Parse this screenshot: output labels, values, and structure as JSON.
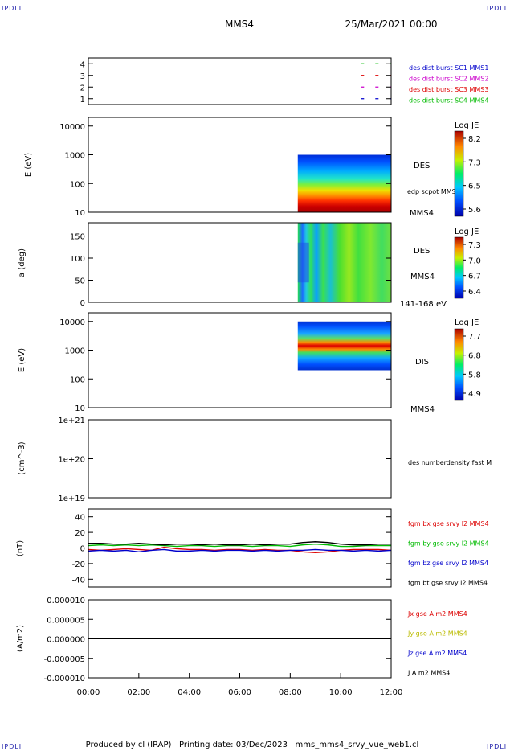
{
  "header": {
    "corner_label": "IPDLI",
    "spacecraft": "MMS4",
    "datetime": "25/Mar/2021 00:00"
  },
  "footer": {
    "text": "Produced by cl (IRAP)   Printing date: 03/Dec/2023   mms_mms4_srvy_vue_web1.cl"
  },
  "colors": {
    "frame": "#000000",
    "mms1": "#0000cc",
    "mms2": "#cc00cc",
    "mms3": "#dd0000",
    "mms4": "#00bb00",
    "black": "#000000"
  },
  "chart_data": [
    {
      "type": "line",
      "panel": "burst",
      "ylim": [
        0.5,
        4.5
      ],
      "yticks": [
        "1",
        "2",
        "3",
        "4"
      ],
      "series": [
        {
          "name": "des dist burst SC1 MMS1",
          "color": "#0000cc",
          "y": 1,
          "segments": [
            [
              10.8,
              12.0
            ]
          ]
        },
        {
          "name": "des dist burst SC2 MMS2",
          "color": "#cc00cc",
          "y": 2,
          "segments": [
            [
              10.8,
              12.0
            ]
          ]
        },
        {
          "name": "des dist burst SC3 MMS3",
          "color": "#dd0000",
          "y": 3,
          "segments": [
            [
              10.8,
              12.0
            ]
          ]
        },
        {
          "name": "des dist burst SC4 MMS4",
          "color": "#00bb00",
          "y": 4,
          "segments": [
            [
              10.8,
              12.0
            ]
          ]
        }
      ]
    },
    {
      "type": "heatmap",
      "panel": "des_energy",
      "ylabel": "E (eV)",
      "log_y": true,
      "ylim": [
        10,
        20000
      ],
      "yticks": [
        "10",
        "100",
        "1000",
        "10000"
      ],
      "data_x_range": [
        8.3,
        12.0
      ],
      "data_y_range": [
        10,
        1000
      ],
      "label": "DES",
      "label2": "edp scpot MMS4",
      "label3": "MMS4",
      "colorbar": {
        "title": "Log JE",
        "ticks": [
          "8.2",
          "7.3",
          "6.5",
          "5.6"
        ]
      }
    },
    {
      "type": "heatmap",
      "panel": "des_pitch",
      "ylabel": "a (deg)",
      "ylim": [
        0,
        180
      ],
      "yticks": [
        "0",
        "50",
        "100",
        "150"
      ],
      "data_x_range": [
        8.3,
        12.0
      ],
      "label": "DES",
      "label3": "MMS4",
      "energy_band": "141-168 eV",
      "colorbar": {
        "title": "Log JE",
        "ticks": [
          "7.3",
          "7.0",
          "6.7",
          "6.4"
        ]
      }
    },
    {
      "type": "heatmap",
      "panel": "dis_energy",
      "ylabel": "E (eV)",
      "log_y": true,
      "ylim": [
        10,
        20000
      ],
      "yticks": [
        "10",
        "100",
        "1000",
        "10000"
      ],
      "data_x_range": [
        8.3,
        12.0
      ],
      "data_y_range": [
        200,
        10000
      ],
      "label": "DIS",
      "label3": "MMS4",
      "colorbar": {
        "title": "Log JE",
        "ticks": [
          "7.7",
          "6.8",
          "5.8",
          "4.9"
        ]
      }
    },
    {
      "type": "line",
      "panel": "density",
      "ylabel": "(cm^-3)",
      "log_y": true,
      "ylim": [
        1e+19,
        1e+21
      ],
      "yticks": [
        "1e+19",
        "1e+20",
        "1e+21"
      ],
      "series": [
        {
          "name": "des numberdensity fast M",
          "color": "#000000",
          "values": []
        }
      ]
    },
    {
      "type": "line",
      "panel": "fgm",
      "ylabel": "(nT)",
      "ylim": [
        -50,
        50
      ],
      "yticks": [
        "-40",
        "-20",
        "0",
        "20",
        "40"
      ],
      "x": [
        0,
        0.5,
        1,
        1.5,
        2,
        2.5,
        3,
        3.5,
        4,
        4.5,
        5,
        5.5,
        6,
        6.5,
        7,
        7.5,
        8,
        8.5,
        9,
        9.5,
        10,
        10.5,
        11,
        11.5,
        12
      ],
      "series": [
        {
          "name": "fgm bx gse srvy l2 MMS4",
          "color": "#dd0000",
          "values": [
            -2,
            -3,
            -2,
            -1,
            -2,
            -3,
            1,
            -1,
            -2,
            -2,
            -3,
            -2,
            -2,
            -3,
            -2,
            -3,
            -3,
            -5,
            -6,
            -5,
            -3,
            -2,
            -2,
            -2,
            -3
          ]
        },
        {
          "name": "fgm by gse srvy l2 MMS4",
          "color": "#00bb00",
          "values": [
            3,
            4,
            3,
            4,
            3,
            4,
            3,
            2,
            3,
            3,
            2,
            3,
            3,
            2,
            3,
            3,
            2,
            4,
            5,
            4,
            2,
            2,
            3,
            3,
            3
          ]
        },
        {
          "name": "fgm bz gse srvy l2 MMS4",
          "color": "#0000cc",
          "values": [
            -4,
            -3,
            -4,
            -3,
            -5,
            -3,
            -2,
            -4,
            -4,
            -3,
            -4,
            -3,
            -3,
            -4,
            -3,
            -4,
            -3,
            -3,
            -2,
            -3,
            -3,
            -4,
            -3,
            -4,
            -3
          ]
        },
        {
          "name": "fgm bt gse srvy l2 MMS4",
          "color": "#000000",
          "values": [
            6,
            6,
            5,
            5,
            6,
            5,
            4,
            5,
            5,
            4,
            5,
            4,
            4,
            5,
            4,
            5,
            5,
            7,
            8,
            7,
            5,
            4,
            4,
            5,
            5
          ]
        }
      ]
    },
    {
      "type": "line",
      "panel": "current",
      "ylabel": "(A/m2)",
      "ylim": [
        -1e-05,
        1e-05
      ],
      "yticks": [
        "-0.000010",
        "-0.000005",
        "0.000000",
        "0.000005",
        "0.000010"
      ],
      "x": [
        0,
        2,
        4,
        6,
        8,
        10,
        12
      ],
      "series": [
        {
          "name": "Jx gse A m2 MMS4",
          "color": "#dd0000",
          "values": [
            0,
            0,
            0,
            0,
            0,
            0,
            0
          ]
        },
        {
          "name": "Jy gse A m2 MMS4",
          "color": "#bbbb00",
          "values": [
            0,
            0,
            0,
            0,
            0,
            0,
            0
          ]
        },
        {
          "name": "Jz gse A m2 MMS4",
          "color": "#0000cc",
          "values": [
            0,
            0,
            0,
            0,
            0,
            0,
            0
          ]
        },
        {
          "name": "J A m2 MMS4",
          "color": "#000000",
          "values": [
            0,
            0,
            0,
            0,
            0,
            0,
            0
          ]
        }
      ],
      "xticks": [
        "00:00",
        "02:00",
        "04:00",
        "06:00",
        "08:00",
        "10:00",
        "12:00"
      ],
      "xlim": [
        0,
        12
      ]
    }
  ]
}
